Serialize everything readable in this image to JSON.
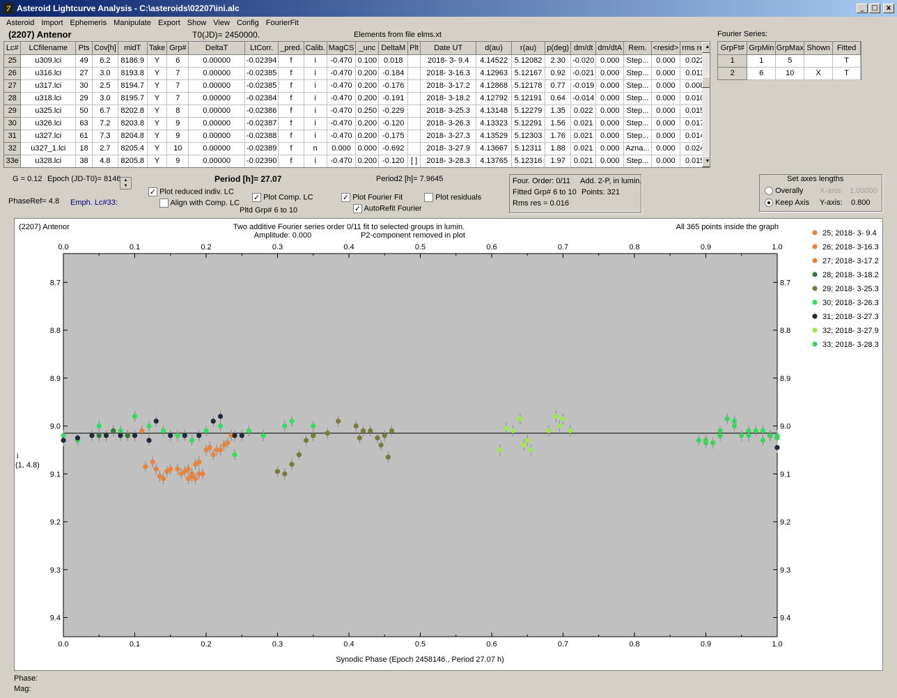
{
  "window": {
    "title": "Asteroid Lightcurve Analysis - C:\\asteroids\\02207\\ini.alc",
    "icon_text": "7",
    "min": "_",
    "max": "□",
    "close": "x"
  },
  "menu": [
    "Asteroid",
    "Import",
    "Ephemeris",
    "Manipulate",
    "Export",
    "Show",
    "View",
    "Config",
    "FourierFit"
  ],
  "header": {
    "asteroid": "(2207) Antenor",
    "t0": "T0(JD)= 2450000.",
    "elements": "Elements from file elms.xt"
  },
  "table": {
    "columns": [
      "Lc#",
      "LCfilename",
      "Pts",
      "Cov[h]",
      "midT",
      "Take",
      "Grp#",
      "DeltaT",
      "LtCorr.",
      "_pred.",
      "Calib.",
      "MagCS",
      "_unc",
      "DeltaM",
      "Plt",
      "Date UT",
      "d(au)",
      "r(au)",
      "p(deg)",
      "dm/dt",
      "dm/dtA",
      "Rem.",
      "<resid>",
      "rms res"
    ],
    "rows": [
      [
        "25",
        "u309.lci",
        "49",
        "6.2",
        "8186.9",
        "Y",
        "6",
        "0.00000",
        "-0.02394",
        "f",
        "i",
        "-0.470",
        "0.100",
        "0.018",
        "",
        "2018- 3- 9.4",
        "4.14522",
        "5.12082",
        "2.30",
        "-0.020",
        "0.000",
        "Step...",
        "0.000",
        "0.022"
      ],
      [
        "26",
        "u316.lci",
        "27",
        "3.0",
        "8193.8",
        "Y",
        "7",
        "0.00000",
        "-0.02385",
        "f",
        "i",
        "-0.470",
        "0.200",
        "-0.184",
        "",
        "2018- 3-16.3",
        "4.12963",
        "5.12167",
        "0.92",
        "-0.021",
        "0.000",
        "Step...",
        "0.000",
        "0.011"
      ],
      [
        "27",
        "u317.lci",
        "30",
        "2.5",
        "8194.7",
        "Y",
        "7",
        "0.00000",
        "-0.02385",
        "f",
        "i",
        "-0.470",
        "0.200",
        "-0.176",
        "",
        "2018- 3-17.2",
        "4.12868",
        "5.12178",
        "0.77",
        "-0.019",
        "0.000",
        "Step...",
        "0.000",
        "0.008"
      ],
      [
        "28",
        "u318.lci",
        "29",
        "3.0",
        "8195.7",
        "Y",
        "7",
        "0.00000",
        "-0.02384",
        "f",
        "i",
        "-0.470",
        "0.200",
        "-0.191",
        "",
        "2018- 3-18.2",
        "4.12792",
        "5.12191",
        "0.64",
        "-0.014",
        "0.000",
        "Step...",
        "0.000",
        "0.010"
      ],
      [
        "29",
        "u325.lci",
        "50",
        "6.7",
        "8202.8",
        "Y",
        "8",
        "0.00000",
        "-0.02386",
        "f",
        "i",
        "-0.470",
        "0.250",
        "-0.229",
        "",
        "2018- 3-25.3",
        "4.13148",
        "5.12279",
        "1.35",
        "0.022",
        "0.000",
        "Step...",
        "0.000",
        "0.015"
      ],
      [
        "30",
        "u326.lci",
        "63",
        "7.2",
        "8203.8",
        "Y",
        "9",
        "0.00000",
        "-0.02387",
        "f",
        "i",
        "-0.470",
        "0.200",
        "-0.120",
        "",
        "2018- 3-26.3",
        "4.13323",
        "5.12291",
        "1.56",
        "0.021",
        "0.000",
        "Step...",
        "0.000",
        "0.017"
      ],
      [
        "31",
        "u327.lci",
        "61",
        "7.3",
        "8204.8",
        "Y",
        "9",
        "0.00000",
        "-0.02388",
        "f",
        "i",
        "-0.470",
        "0.200",
        "-0.175",
        "",
        "2018- 3-27.3",
        "4.13529",
        "5.12303",
        "1.76",
        "0.021",
        "0.000",
        "Step...",
        "0.000",
        "0.014"
      ],
      [
        "32",
        "u327_1.lci",
        "18",
        "2.7",
        "8205.4",
        "Y",
        "10",
        "0.00000",
        "-0.02389",
        "f",
        "n",
        "0.000",
        "0.000",
        "-0.692",
        "",
        "2018- 3-27.9",
        "4.13667",
        "5.12311",
        "1.88",
        "0.021",
        "0.000",
        "Azna...",
        "0.000",
        "0.024"
      ],
      [
        "33e",
        "u328.lci",
        "38",
        "4.8",
        "8205.8",
        "Y",
        "9",
        "0.00000",
        "-0.02390",
        "f",
        "i",
        "-0.470",
        "0.200",
        "-0.120",
        "[ ]",
        "2018- 3-28.3",
        "4.13765",
        "5.12316",
        "1.97",
        "0.021",
        "0.000",
        "Step...",
        "0.000",
        "0.015"
      ]
    ]
  },
  "fourier_series": {
    "label": "Fourier Series:",
    "columns": [
      "GrpFt#",
      "GrpMin",
      "GrpMax",
      "Shown",
      "Fitted"
    ],
    "rows": [
      [
        "1",
        "1",
        "5",
        "",
        "T"
      ],
      [
        "2",
        "6",
        "10",
        "X",
        "T"
      ]
    ]
  },
  "controls": {
    "g": "G = 0.12",
    "epoch": "Epoch (JD-T0)= 8146.",
    "period": "Period [h]= 27.07",
    "period2": "Period2 [h]= 7.9645",
    "phaseref": "PhaseRef= 4.8",
    "emph": "Emph. Lc#33:",
    "plot_reduced": "Plot reduced indiv. LC",
    "align_comp": "Align with Comp. LC",
    "plot_comp": "Plot Comp. LC",
    "pltd_grp": "Pltd Grp#  6  to  10",
    "plot_fourier": "Plot Fourier Fit",
    "autorefit": "AutoRefit Fourier",
    "plot_residuals": "Plot residuals",
    "check_mark": "✓",
    "four_order": "Four. Order:  0/11",
    "add2p": "Add. 2-P, in lumin.",
    "fitted_grp": "Fitted Grp# 6 to 10",
    "points": "Points: 321",
    "rms": "Rms res      = 0.016",
    "axes_title": "Set axes lengths",
    "overally": "Overally",
    "keep_axis": "Keep Axis",
    "x_axis_label": "X-axis:",
    "x_axis_val": "1.00000",
    "y_axis_label": "Y-axis:",
    "y_axis_val": "0.800"
  },
  "plot": {
    "name": "(2207) Antenor",
    "info1": "Two additive Fourier series order 0/11 fit to selected groups in lumin.",
    "info2": "Amplitude: 0.000",
    "info3": "P2-component removed in plot",
    "inside": "All 365 points inside the graph",
    "ylabel1": "i",
    "ylabel2": "(1, 4.8)",
    "xlabel": "Synodic Phase (Epoch 2458146., Period 27.07 h)"
  },
  "chart_data": {
    "type": "scatter",
    "xlim": [
      0.0,
      1.0
    ],
    "ylim": [
      8.64,
      9.44
    ],
    "y_inverted": true,
    "x_ticks": [
      "0.0",
      "0.1",
      "0.2",
      "0.3",
      "0.4",
      "0.5",
      "0.6",
      "0.7",
      "0.8",
      "0.9",
      "1.0"
    ],
    "y_ticks": [
      "8.7",
      "8.8",
      "8.9",
      "9.0",
      "9.1",
      "9.2",
      "9.3",
      "9.4"
    ],
    "fit_line": 9.015,
    "series": [
      {
        "name": "25; 2018- 3- 9.4",
        "color": "#e8843c",
        "points": [
          [
            0.07,
            9.01
          ],
          [
            0.09,
            9.02
          ],
          [
            0.11,
            9.01
          ]
        ]
      },
      {
        "name": "26; 2018- 3-16.3",
        "color": "#e8843c",
        "points": [
          [
            0.115,
            9.085
          ],
          [
            0.125,
            9.075
          ],
          [
            0.13,
            9.09
          ],
          [
            0.135,
            9.105
          ],
          [
            0.14,
            9.11
          ],
          [
            0.145,
            9.095
          ],
          [
            0.15,
            9.09
          ],
          [
            0.16,
            9.09
          ],
          [
            0.165,
            9.1
          ],
          [
            0.17,
            9.095
          ],
          [
            0.175,
            9.09
          ],
          [
            0.18,
            9.1
          ],
          [
            0.185,
            9.08
          ],
          [
            0.19,
            9.075
          ]
        ]
      },
      {
        "name": "27; 2018- 3-17.2",
        "color": "#e8843c",
        "points": [
          [
            0.175,
            9.11
          ],
          [
            0.18,
            9.105
          ],
          [
            0.185,
            9.11
          ],
          [
            0.19,
            9.1
          ],
          [
            0.195,
            9.1
          ],
          [
            0.2,
            9.05
          ],
          [
            0.205,
            9.045
          ],
          [
            0.21,
            9.06
          ],
          [
            0.215,
            9.05
          ],
          [
            0.22,
            9.05
          ],
          [
            0.225,
            9.04
          ],
          [
            0.23,
            9.035
          ],
          [
            0.235,
            9.02
          ]
        ]
      },
      {
        "name": "28; 2018- 3-18.2",
        "color": "#2d7a3c",
        "points": [
          [
            0.05,
            9.02
          ],
          [
            0.07,
            9.01
          ],
          [
            0.09,
            9.02
          ]
        ]
      },
      {
        "name": "29; 2018- 3-25.3",
        "color": "#7a7a3a",
        "points": [
          [
            0.3,
            9.095
          ],
          [
            0.31,
            9.1
          ],
          [
            0.32,
            9.08
          ],
          [
            0.33,
            9.06
          ],
          [
            0.34,
            9.03
          ],
          [
            0.35,
            9.02
          ],
          [
            0.37,
            9.015
          ],
          [
            0.385,
            8.99
          ],
          [
            0.41,
            9.0
          ],
          [
            0.415,
            9.025
          ],
          [
            0.42,
            9.01
          ],
          [
            0.43,
            9.01
          ],
          [
            0.44,
            9.025
          ],
          [
            0.445,
            9.04
          ],
          [
            0.45,
            9.02
          ],
          [
            0.455,
            9.065
          ],
          [
            0.46,
            9.01
          ]
        ]
      },
      {
        "name": "30; 2018- 3-26.3",
        "color": "#2ee05a",
        "points": [
          [
            0.0,
            9.02
          ],
          [
            0.02,
            9.03
          ],
          [
            0.05,
            9.0
          ],
          [
            0.08,
            9.01
          ],
          [
            0.1,
            8.98
          ],
          [
            0.12,
            9.0
          ],
          [
            0.14,
            9.01
          ],
          [
            0.16,
            9.02
          ],
          [
            0.18,
            9.03
          ],
          [
            0.2,
            9.01
          ],
          [
            0.22,
            9.0
          ],
          [
            0.24,
            9.06
          ],
          [
            0.26,
            9.01
          ],
          [
            0.28,
            9.02
          ],
          [
            0.31,
            9.0
          ],
          [
            0.32,
            8.99
          ],
          [
            0.35,
            9.0
          ],
          [
            0.9,
            9.03
          ],
          [
            0.92,
            9.01
          ],
          [
            0.94,
            8.99
          ],
          [
            0.96,
            9.02
          ],
          [
            0.98,
            9.01
          ],
          [
            1.0,
            9.02
          ]
        ]
      },
      {
        "name": "31; 2018- 3-27.3",
        "color": "#1e2a3c",
        "points": [
          [
            0.0,
            9.03
          ],
          [
            0.02,
            9.025
          ],
          [
            0.04,
            9.02
          ],
          [
            0.06,
            9.02
          ],
          [
            0.08,
            9.02
          ],
          [
            0.1,
            9.02
          ],
          [
            0.12,
            9.03
          ],
          [
            0.13,
            8.99
          ],
          [
            0.15,
            9.02
          ],
          [
            0.17,
            9.02
          ],
          [
            0.19,
            9.02
          ],
          [
            0.21,
            8.99
          ],
          [
            0.22,
            8.98
          ],
          [
            0.24,
            9.02
          ],
          [
            0.25,
            9.02
          ],
          [
            0.99,
            9.02
          ],
          [
            1.0,
            9.045
          ]
        ]
      },
      {
        "name": "32; 2018- 3-27.9",
        "color": "#9be84a",
        "points": [
          [
            0.612,
            9.05
          ],
          [
            0.62,
            9.005
          ],
          [
            0.63,
            9.01
          ],
          [
            0.64,
            8.985
          ],
          [
            0.645,
            9.04
          ],
          [
            0.65,
            9.03
          ],
          [
            0.655,
            9.05
          ],
          [
            0.68,
            9.01
          ],
          [
            0.69,
            8.98
          ],
          [
            0.695,
            9.0
          ],
          [
            0.7,
            8.985
          ],
          [
            0.71,
            9.01
          ]
        ]
      },
      {
        "name": "33; 2018- 3-28.3",
        "color": "#3cd45a",
        "points": [
          [
            0.89,
            9.03
          ],
          [
            0.9,
            9.035
          ],
          [
            0.91,
            9.035
          ],
          [
            0.92,
            9.02
          ],
          [
            0.93,
            8.985
          ],
          [
            0.94,
            9.0
          ],
          [
            0.95,
            9.02
          ],
          [
            0.96,
            9.01
          ],
          [
            0.97,
            9.01
          ],
          [
            0.98,
            9.03
          ],
          [
            0.99,
            9.02
          ],
          [
            1.0,
            9.025
          ]
        ]
      }
    ]
  }
}
